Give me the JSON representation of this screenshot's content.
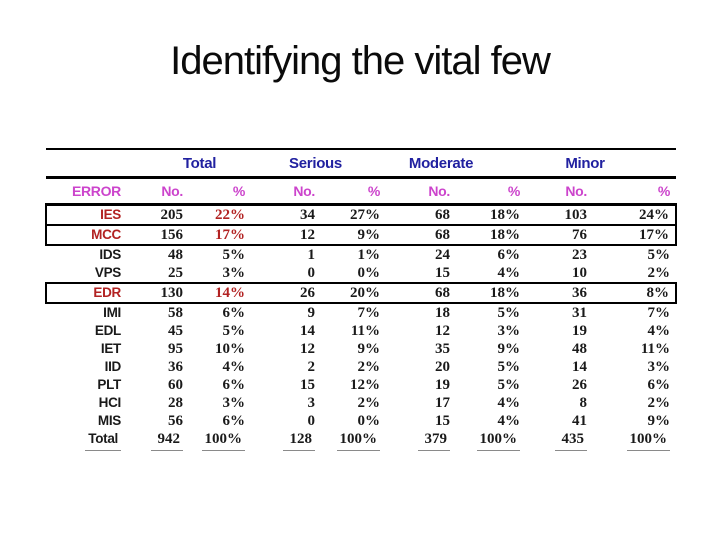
{
  "slide": {
    "title": "Identifying the vital few",
    "colors": {
      "group_header": "#2121a0",
      "sub_header": "#cc44cc",
      "highlight_red": "#b22222",
      "body_text": "#1a1a1a",
      "rule": "#000000",
      "total_underline": "#8a8a8a"
    }
  },
  "table": {
    "group_headers": [
      {
        "label": "Total"
      },
      {
        "label": "Serious"
      },
      {
        "label": "Moderate"
      },
      {
        "label": "Minor"
      }
    ],
    "sub_headers": [
      "ERROR",
      "No.",
      "%",
      "No.",
      "%",
      "No.",
      "%",
      "No.",
      "%"
    ],
    "rows": [
      {
        "label": "IES",
        "cells": [
          "205",
          "22%",
          "34",
          "27%",
          "68",
          "18%",
          "103",
          "24%"
        ],
        "highlight": true,
        "boxed": true,
        "total": false
      },
      {
        "label": "MCC",
        "cells": [
          "156",
          "17%",
          "12",
          "9%",
          "68",
          "18%",
          "76",
          "17%"
        ],
        "highlight": true,
        "boxed": true,
        "total": false
      },
      {
        "label": "IDS",
        "cells": [
          "48",
          "5%",
          "1",
          "1%",
          "24",
          "6%",
          "23",
          "5%"
        ],
        "highlight": false,
        "boxed": false,
        "total": false
      },
      {
        "label": "VPS",
        "cells": [
          "25",
          "3%",
          "0",
          "0%",
          "15",
          "4%",
          "10",
          "2%"
        ],
        "highlight": false,
        "boxed": false,
        "total": false
      },
      {
        "label": "EDR",
        "cells": [
          "130",
          "14%",
          "26",
          "20%",
          "68",
          "18%",
          "36",
          "8%"
        ],
        "highlight": true,
        "boxed": true,
        "total": false
      },
      {
        "label": "IMI",
        "cells": [
          "58",
          "6%",
          "9",
          "7%",
          "18",
          "5%",
          "31",
          "7%"
        ],
        "highlight": false,
        "boxed": false,
        "total": false
      },
      {
        "label": "EDL",
        "cells": [
          "45",
          "5%",
          "14",
          "11%",
          "12",
          "3%",
          "19",
          "4%"
        ],
        "highlight": false,
        "boxed": false,
        "total": false
      },
      {
        "label": "IET",
        "cells": [
          "95",
          "10%",
          "12",
          "9%",
          "35",
          "9%",
          "48",
          "11%"
        ],
        "highlight": false,
        "boxed": false,
        "total": false
      },
      {
        "label": "IID",
        "cells": [
          "36",
          "4%",
          "2",
          "2%",
          "20",
          "5%",
          "14",
          "3%"
        ],
        "highlight": false,
        "boxed": false,
        "total": false
      },
      {
        "label": "PLT",
        "cells": [
          "60",
          "6%",
          "15",
          "12%",
          "19",
          "5%",
          "26",
          "6%"
        ],
        "highlight": false,
        "boxed": false,
        "total": false
      },
      {
        "label": "HCI",
        "cells": [
          "28",
          "3%",
          "3",
          "2%",
          "17",
          "4%",
          "8",
          "2%"
        ],
        "highlight": false,
        "boxed": false,
        "total": false
      },
      {
        "label": "MIS",
        "cells": [
          "56",
          "6%",
          "0",
          "0%",
          "15",
          "4%",
          "41",
          "9%"
        ],
        "highlight": false,
        "boxed": false,
        "total": false
      },
      {
        "label": "Total",
        "cells": [
          "942",
          "100%",
          "128",
          "100%",
          "379",
          "100%",
          "435",
          "100%"
        ],
        "highlight": false,
        "boxed": false,
        "total": true
      }
    ]
  }
}
